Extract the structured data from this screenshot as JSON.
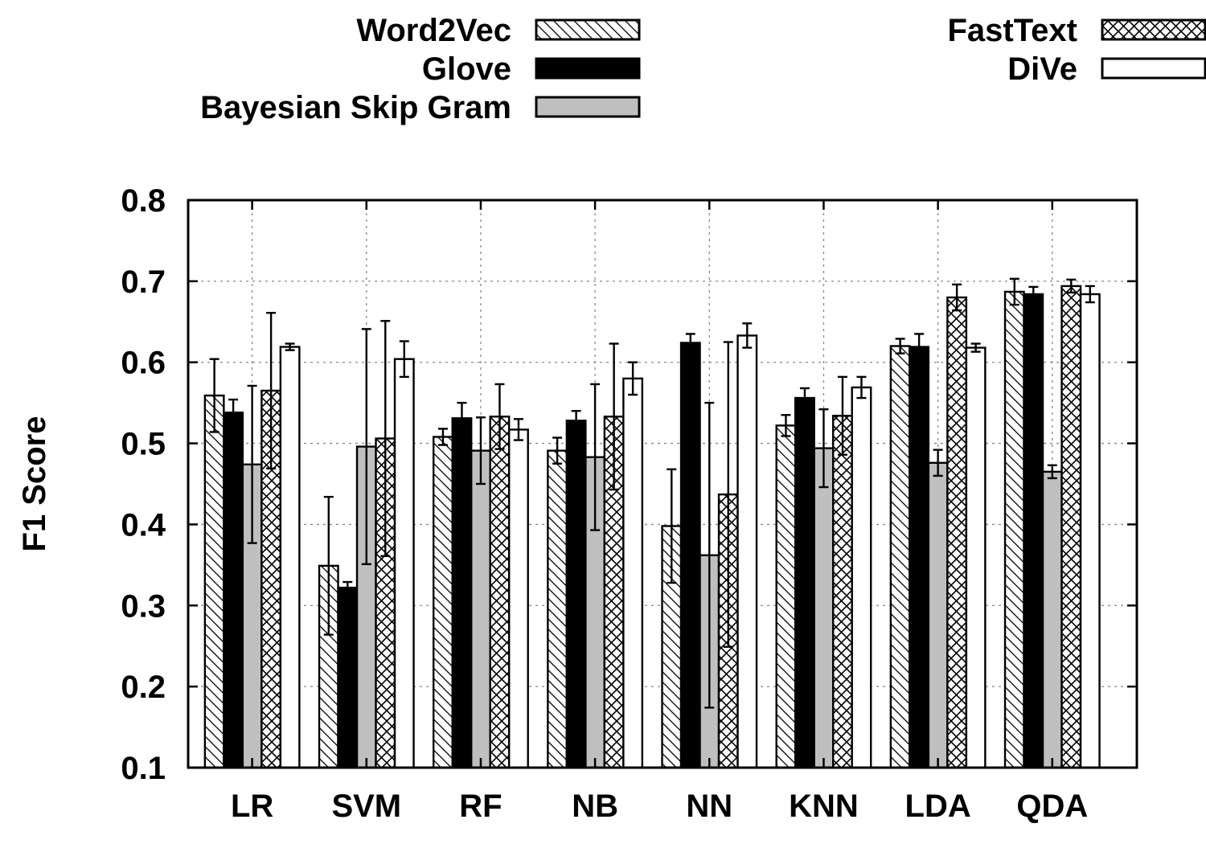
{
  "chart_data": {
    "type": "bar",
    "title": "",
    "xlabel": "",
    "ylabel": "F1 Score",
    "ylim": [
      0.1,
      0.8
    ],
    "yticks": [
      "0.1",
      "0.2",
      "0.3",
      "0.4",
      "0.5",
      "0.6",
      "0.7",
      "0.8"
    ],
    "grid": true,
    "legend_position": "top",
    "categories": [
      "LR",
      "SVM",
      "RF",
      "NB",
      "NN",
      "KNN",
      "LDA",
      "QDA"
    ],
    "series": [
      {
        "name": "Word2Vec",
        "fill": "hatch-diagonal",
        "values": [
          0.559,
          0.349,
          0.508,
          0.491,
          0.398,
          0.522,
          0.62,
          0.687
        ],
        "errors": [
          0.045,
          0.085,
          0.01,
          0.016,
          0.07,
          0.013,
          0.009,
          0.016
        ]
      },
      {
        "name": "Glove",
        "fill": "black",
        "values": [
          0.538,
          0.322,
          0.531,
          0.528,
          0.624,
          0.556,
          0.619,
          0.684
        ],
        "errors": [
          0.016,
          0.007,
          0.019,
          0.012,
          0.011,
          0.012,
          0.016,
          0.009
        ]
      },
      {
        "name": "Bayesian Skip Gram",
        "fill": "gray",
        "values": [
          0.474,
          0.496,
          0.491,
          0.483,
          0.362,
          0.494,
          0.476,
          0.465
        ],
        "errors": [
          0.097,
          0.145,
          0.041,
          0.09,
          0.188,
          0.048,
          0.016,
          0.008
        ]
      },
      {
        "name": "FastText",
        "fill": "hatch-cross",
        "values": [
          0.565,
          0.506,
          0.533,
          0.533,
          0.437,
          0.534,
          0.68,
          0.694
        ],
        "errors": [
          0.096,
          0.145,
          0.04,
          0.09,
          0.188,
          0.048,
          0.016,
          0.008
        ]
      },
      {
        "name": "DiVe",
        "fill": "white",
        "values": [
          0.619,
          0.604,
          0.517,
          0.58,
          0.633,
          0.569,
          0.618,
          0.684
        ],
        "errors": [
          0.004,
          0.022,
          0.013,
          0.02,
          0.015,
          0.013,
          0.005,
          0.01
        ]
      }
    ]
  },
  "colors": {
    "black": "#000000",
    "gray": "#bfbfbf",
    "white": "#ffffff",
    "grid": "#888888"
  }
}
